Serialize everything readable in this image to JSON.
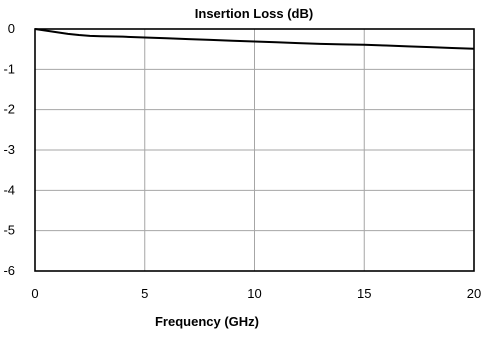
{
  "chart_data": {
    "type": "line",
    "title": "Insertion Loss (dB)",
    "xlabel": "Frequency  (GHz)",
    "ylabel": "",
    "xlim": [
      0,
      20
    ],
    "ylim": [
      -6,
      0
    ],
    "x_ticks": [
      0,
      5,
      10,
      15,
      20
    ],
    "y_ticks": [
      0,
      -1,
      -2,
      -3,
      -4,
      -5,
      -6
    ],
    "x_tick_labels": [
      "0",
      "5",
      "10",
      "15",
      "20"
    ],
    "y_tick_labels": [
      "0",
      "-1",
      "-2",
      "-3",
      "-4",
      "-5",
      "-6"
    ],
    "grid": true,
    "legend": "none",
    "series": [
      {
        "color": "#000000",
        "x": [
          0,
          0.5,
          1,
          1.5,
          2,
          2.5,
          3,
          4,
          5,
          6,
          7,
          8,
          9,
          10,
          11,
          12,
          13,
          14,
          15,
          16,
          17,
          18,
          19,
          20
        ],
        "y": [
          0,
          -0.04,
          -0.08,
          -0.12,
          -0.15,
          -0.17,
          -0.18,
          -0.19,
          -0.21,
          -0.23,
          -0.25,
          -0.27,
          -0.29,
          -0.31,
          -0.33,
          -0.35,
          -0.37,
          -0.38,
          -0.39,
          -0.41,
          -0.43,
          -0.45,
          -0.47,
          -0.49
        ]
      }
    ]
  }
}
